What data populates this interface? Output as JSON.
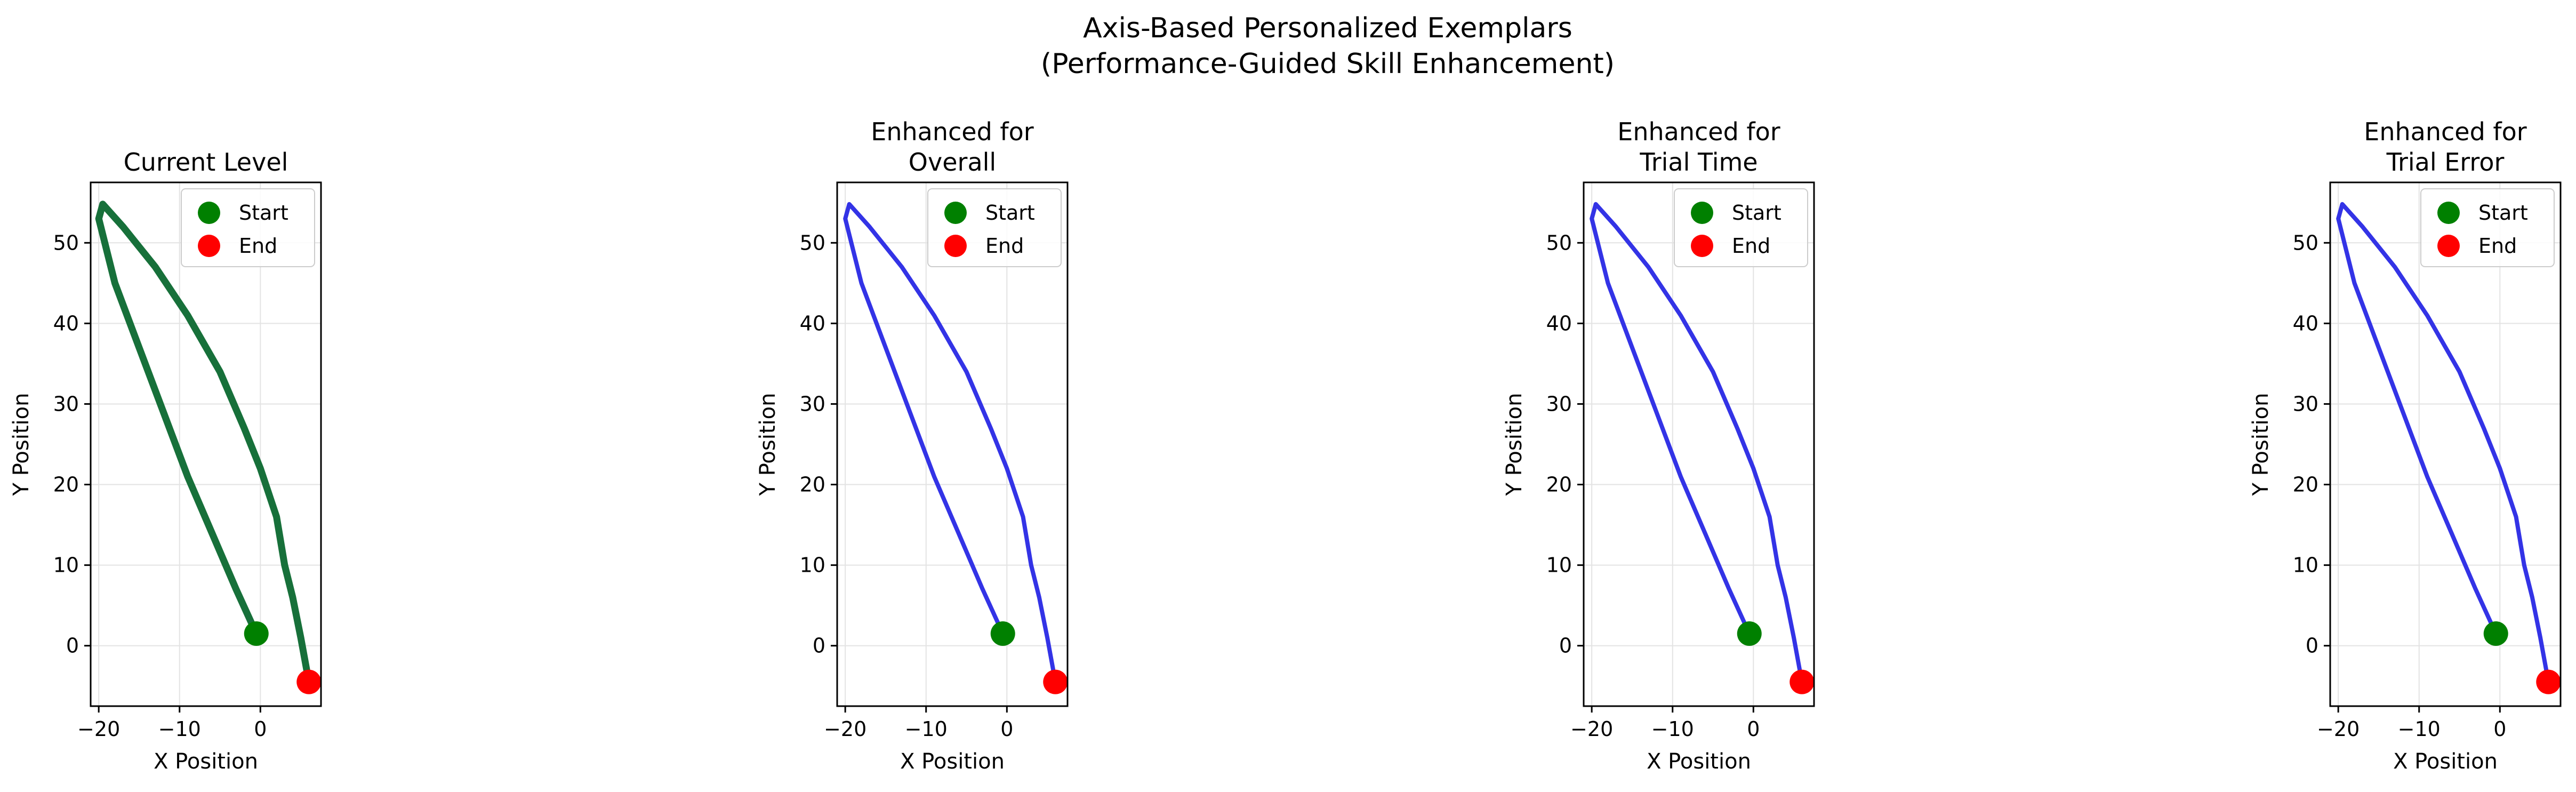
{
  "figure": {
    "title_line1": "Axis-Based Personalized Exemplars",
    "title_line2": "(Performance-Guided Skill Enhancement)"
  },
  "colors": {
    "current": "#17703a",
    "enhanced": "#3333e6",
    "start_marker": "#008000",
    "end_marker": "#ff0000",
    "grid": "#e3e3e3"
  },
  "chart_data": [
    {
      "type": "line",
      "title": [
        "Current Level"
      ],
      "xlabel": "X Position",
      "ylabel": "Y Position",
      "xlim": [
        -21,
        7.5
      ],
      "ylim": [
        -7.5,
        57.5
      ],
      "xticks": [
        -20,
        -10,
        0
      ],
      "yticks": [
        0,
        10,
        20,
        30,
        40,
        50
      ],
      "xtick_labels": [
        "−20",
        "−10",
        "0"
      ],
      "ytick_labels": [
        "0",
        "10",
        "20",
        "30",
        "40",
        "50"
      ],
      "grid": true,
      "legend": [
        "Start",
        "End"
      ],
      "legend_position": "upper right",
      "series_color": "current",
      "line_width": 13,
      "series": [
        {
          "x": [
            -0.5,
            -3,
            -6,
            -9,
            -12,
            -15,
            -18,
            -20,
            -19.5,
            -17,
            -13,
            -9,
            -5,
            -2,
            0,
            2,
            3,
            4,
            5,
            6
          ],
          "y": [
            1.5,
            7,
            14,
            21,
            29,
            37,
            45,
            53,
            54.8,
            52,
            47,
            41,
            34,
            27,
            22,
            16,
            10,
            6,
            1,
            -4.5
          ]
        }
      ],
      "start": {
        "x": -0.5,
        "y": 1.5
      },
      "end": {
        "x": 6,
        "y": -4.5
      }
    },
    {
      "type": "line",
      "title": [
        "Enhanced for",
        "Overall"
      ],
      "xlabel": "X Position",
      "ylabel": "Y Position",
      "xlim": [
        -21,
        7.5
      ],
      "ylim": [
        -7.5,
        57.5
      ],
      "xticks": [
        -20,
        -10,
        0
      ],
      "yticks": [
        0,
        10,
        20,
        30,
        40,
        50
      ],
      "xtick_labels": [
        "−20",
        "−10",
        "0"
      ],
      "ytick_labels": [
        "0",
        "10",
        "20",
        "30",
        "40",
        "50"
      ],
      "grid": true,
      "legend": [
        "Start",
        "End"
      ],
      "legend_position": "upper right",
      "series_color": "enhanced",
      "line_width": 8,
      "series": [
        {
          "x": [
            -0.5,
            -3,
            -6,
            -9,
            -12,
            -15,
            -18,
            -20,
            -19.5,
            -17,
            -13,
            -9,
            -5,
            -2,
            0,
            2,
            3,
            4,
            5,
            6
          ],
          "y": [
            1.5,
            7,
            14,
            21,
            29,
            37,
            45,
            53,
            54.8,
            52,
            47,
            41,
            34,
            27,
            22,
            16,
            10,
            6,
            1,
            -4.5
          ]
        }
      ],
      "start": {
        "x": -0.5,
        "y": 1.5
      },
      "end": {
        "x": 6,
        "y": -4.5
      }
    },
    {
      "type": "line",
      "title": [
        "Enhanced for",
        "Trial Time"
      ],
      "xlabel": "X Position",
      "ylabel": "Y Position",
      "xlim": [
        -21,
        7.5
      ],
      "ylim": [
        -7.5,
        57.5
      ],
      "xticks": [
        -20,
        -10,
        0
      ],
      "yticks": [
        0,
        10,
        20,
        30,
        40,
        50
      ],
      "xtick_labels": [
        "−20",
        "−10",
        "0"
      ],
      "ytick_labels": [
        "0",
        "10",
        "20",
        "30",
        "40",
        "50"
      ],
      "grid": true,
      "legend": [
        "Start",
        "End"
      ],
      "legend_position": "upper right",
      "series_color": "enhanced",
      "line_width": 8,
      "series": [
        {
          "x": [
            -0.5,
            -3,
            -6,
            -9,
            -12,
            -15,
            -18,
            -20,
            -19.5,
            -17,
            -13,
            -9,
            -5,
            -2,
            0,
            2,
            3,
            4,
            5,
            6
          ],
          "y": [
            1.5,
            7,
            14,
            21,
            29,
            37,
            45,
            53,
            54.8,
            52,
            47,
            41,
            34,
            27,
            22,
            16,
            10,
            6,
            1,
            -4.5
          ]
        }
      ],
      "start": {
        "x": -0.5,
        "y": 1.5
      },
      "end": {
        "x": 6,
        "y": -4.5
      }
    },
    {
      "type": "line",
      "title": [
        "Enhanced for",
        "Trial Error"
      ],
      "xlabel": "X Position",
      "ylabel": "Y Position",
      "xlim": [
        -21,
        7.5
      ],
      "ylim": [
        -7.5,
        57.5
      ],
      "xticks": [
        -20,
        -10,
        0
      ],
      "yticks": [
        0,
        10,
        20,
        30,
        40,
        50
      ],
      "xtick_labels": [
        "−20",
        "−10",
        "0"
      ],
      "ytick_labels": [
        "0",
        "10",
        "20",
        "30",
        "40",
        "50"
      ],
      "grid": true,
      "legend": [
        "Start",
        "End"
      ],
      "legend_position": "upper right",
      "series_color": "enhanced",
      "line_width": 8,
      "series": [
        {
          "x": [
            -0.5,
            -3,
            -6,
            -9,
            -12,
            -15,
            -18,
            -20,
            -19.5,
            -17,
            -13,
            -9,
            -5,
            -2,
            0,
            2,
            3,
            4,
            5,
            6
          ],
          "y": [
            1.5,
            7,
            14,
            21,
            29,
            37,
            45,
            53,
            54.8,
            52,
            47,
            41,
            34,
            27,
            22,
            16,
            10,
            6,
            1,
            -4.5
          ]
        }
      ],
      "start": {
        "x": -0.5,
        "y": 1.5
      },
      "end": {
        "x": 6,
        "y": -4.5
      }
    }
  ]
}
